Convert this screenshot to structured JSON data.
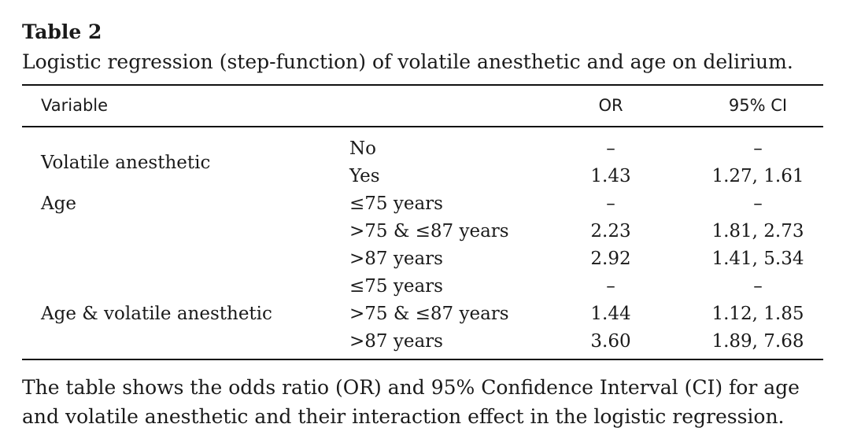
{
  "table": {
    "label": "Table 2",
    "caption": "Logistic regression (step-function) of volatile anesthetic and age on delirium.",
    "headers": {
      "variable": "Variable",
      "or": "OR",
      "ci": "95% CI"
    },
    "groups": [
      {
        "variable": "Volatile anesthetic",
        "rows": [
          {
            "level": "No",
            "or": "–",
            "ci": "–"
          },
          {
            "level": "Yes",
            "or": "1.43",
            "ci": "1.27, 1.61"
          }
        ]
      },
      {
        "variable": "Age",
        "rows": [
          {
            "level": "≤75 years",
            "or": "–",
            "ci": "–"
          },
          {
            "level": ">75 & ≤87 years",
            "or": "2.23",
            "ci": "1.81, 2.73"
          },
          {
            "level": ">87 years",
            "or": "2.92",
            "ci": "1.41, 5.34"
          }
        ]
      },
      {
        "variable": "Age & volatile anesthetic",
        "rows": [
          {
            "level": "≤75 years",
            "or": "–",
            "ci": "–"
          },
          {
            "level": ">75 & ≤87 years",
            "or": "1.44",
            "ci": "1.12, 1.85"
          },
          {
            "level": ">87 years",
            "or": "3.60",
            "ci": "1.89, 7.68"
          }
        ]
      }
    ],
    "footnote_lines": [
      "The table shows the odds ratio (OR) and 95% Confidence Interval (CI) for age",
      "and volatile anesthetic and their interaction effect in the logistic regression."
    ]
  }
}
